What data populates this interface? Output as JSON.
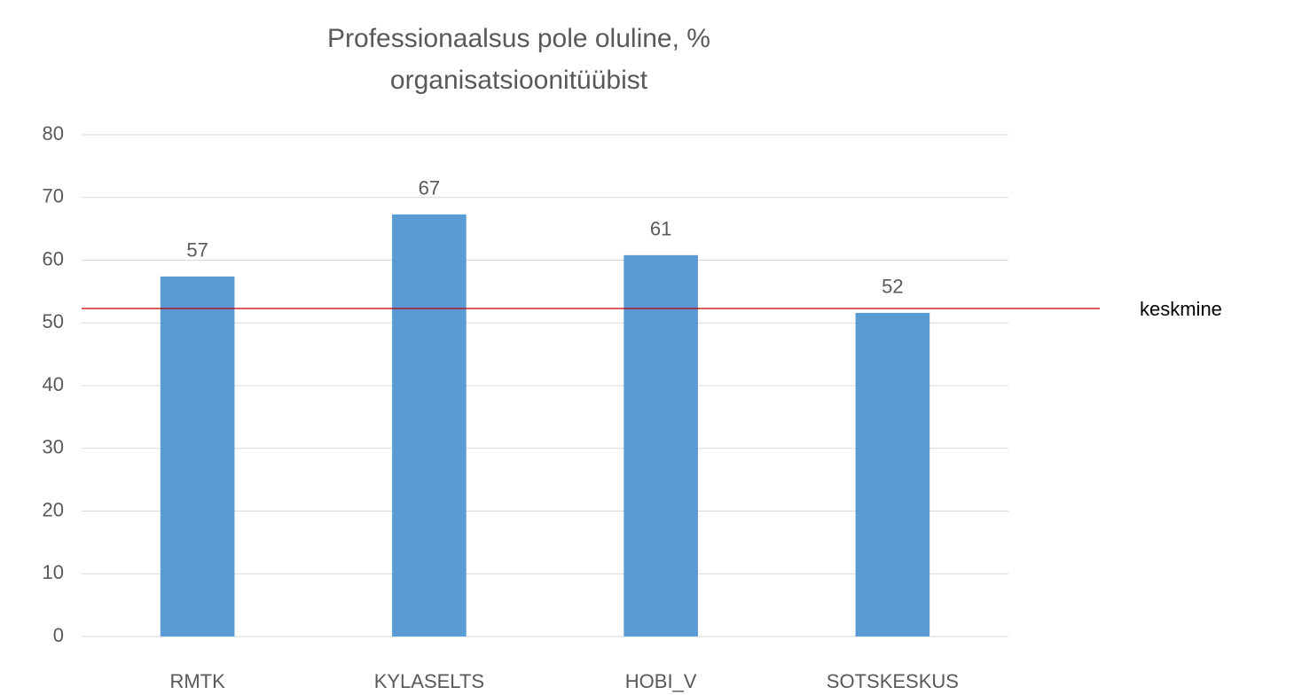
{
  "chart_data": {
    "type": "bar",
    "title": [
      "Professionaalsus pole oluline, %",
      "organisatsioonitüübist"
    ],
    "categories": [
      "RMTK",
      "KYLASELTS",
      "HOBI_V",
      "SOTSKESKUS"
    ],
    "values": [
      57.4,
      67.3,
      60.8,
      51.6
    ],
    "value_labels": [
      "57",
      "67",
      "61",
      "52"
    ],
    "color": "#5b9bd5",
    "ylim": [
      0,
      80
    ],
    "yticks": [
      0,
      10,
      20,
      30,
      40,
      50,
      60,
      70,
      80
    ],
    "grid": true,
    "reference_line": {
      "value": 52.3,
      "label": "keskmine",
      "color": "#c00000"
    }
  }
}
